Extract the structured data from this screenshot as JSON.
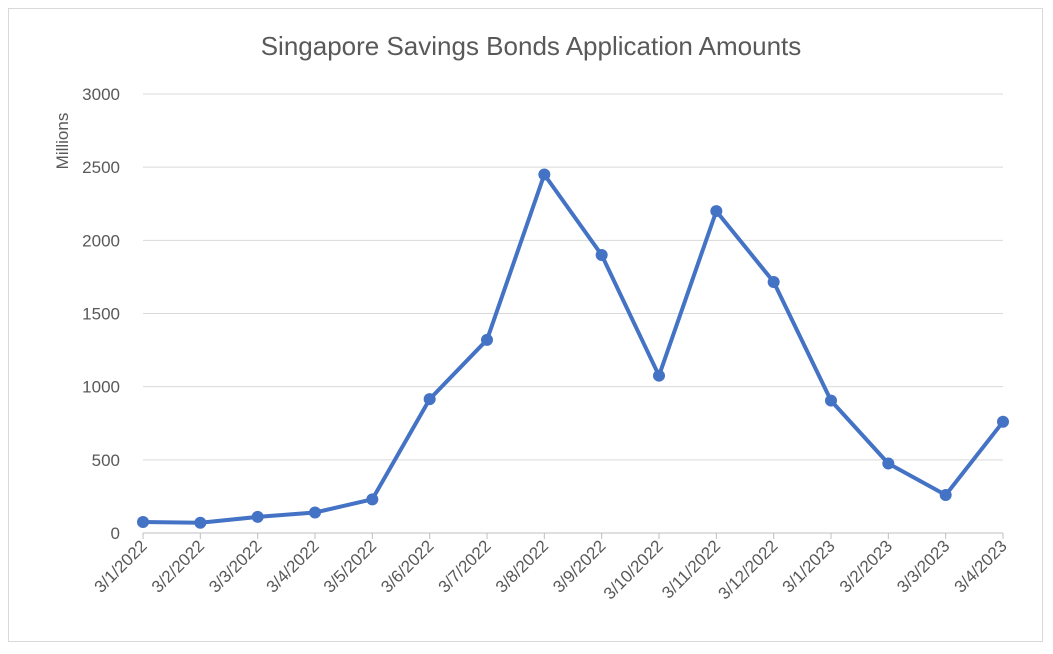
{
  "chart_data": {
    "type": "line",
    "title": "Singapore Savings Bonds Application Amounts",
    "xlabel": "",
    "ylabel": "Millions",
    "ylim": [
      0,
      3000
    ],
    "yticks": [
      0,
      500,
      1000,
      1500,
      2000,
      2500,
      3000
    ],
    "grid": true,
    "legend": "none",
    "categories": [
      "3/1/2022",
      "3/2/2022",
      "3/3/2022",
      "3/4/2022",
      "3/5/2022",
      "3/6/2022",
      "3/7/2022",
      "3/8/2022",
      "3/9/2022",
      "3/10/2022",
      "3/11/2022",
      "3/12/2022",
      "3/1/2023",
      "3/2/2023",
      "3/3/2023",
      "3/4/2023"
    ],
    "series": [
      {
        "color": "#4472c4",
        "values": [
          75,
          70,
          110,
          140,
          230,
          915,
          1320,
          2450,
          1900,
          1075,
          2200,
          1715,
          905,
          475,
          260,
          760
        ]
      }
    ],
    "colors": {
      "line": "#4472c4",
      "grid": "#d9d9d9",
      "text": "#595959",
      "axis": "#bfbfbf"
    }
  }
}
